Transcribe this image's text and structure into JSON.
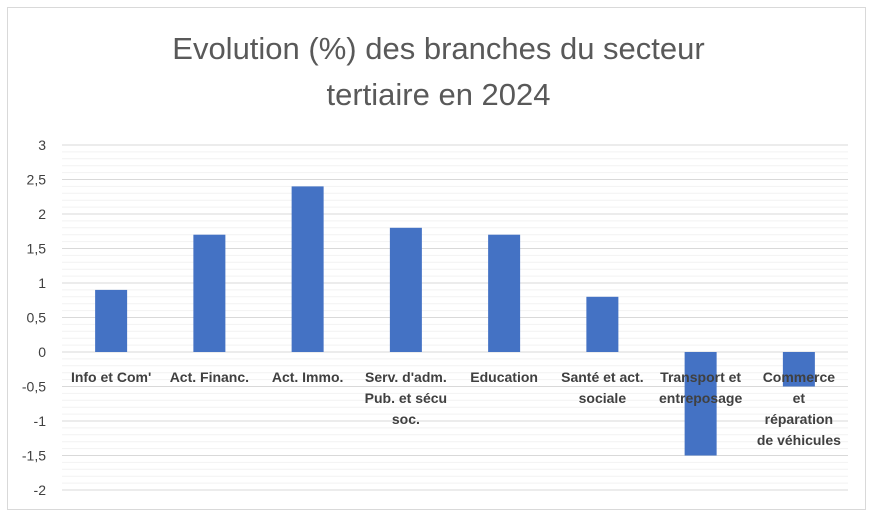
{
  "chart_data": {
    "type": "bar",
    "title_lines": [
      "Evolution (%) des branches du secteur",
      "tertiaire en 2024"
    ],
    "categories": [
      [
        "Info et Com'"
      ],
      [
        "Act. Financ."
      ],
      [
        "Act. Immo."
      ],
      [
        "Serv. d'adm.",
        "Pub. et sécu",
        "soc."
      ],
      [
        "Education"
      ],
      [
        "Santé et act.",
        "sociale"
      ],
      [
        "Transport et",
        "entreposage"
      ],
      [
        "Commerce",
        "et",
        "réparation",
        "de véhicules"
      ]
    ],
    "values": [
      0.9,
      1.7,
      2.4,
      1.8,
      1.7,
      0.8,
      -1.5,
      -0.5
    ],
    "yticks": [
      "3",
      "2,5",
      "2",
      "1,5",
      "1",
      "0,5",
      "0",
      "-0,5",
      "-1",
      "-1,5",
      "-2"
    ],
    "ylim": [
      -2,
      3
    ],
    "major_step": 0.5,
    "minor_step": 0.1,
    "bar_color": "#4472c4",
    "grid": true,
    "legend": "none"
  }
}
